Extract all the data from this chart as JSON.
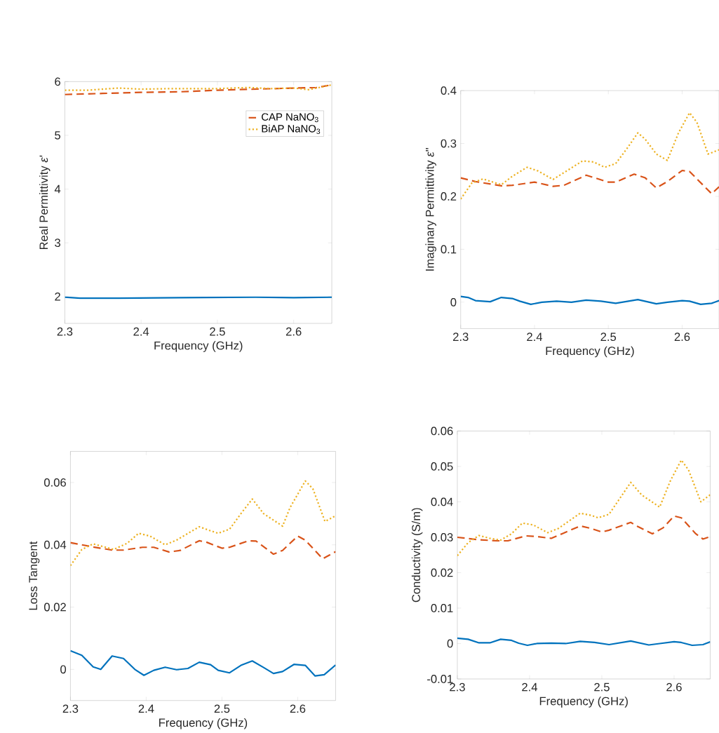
{
  "chart_data": [
    {
      "type": "line",
      "xlabel": "Frequency (GHz)",
      "ylabel": "Real Permittivity *ε*'",
      "xlim": [
        2.3,
        2.65
      ],
      "ylim": [
        1.5,
        6
      ],
      "xticks": [
        2.3,
        2.4,
        2.5,
        2.6
      ],
      "yticks": [
        2,
        3,
        4,
        5,
        6
      ],
      "legend": "top right",
      "series": [
        {
          "color": "#0072bd",
          "line_style": "solid",
          "x": [
            2.3,
            2.32,
            2.37,
            2.45,
            2.55,
            2.6,
            2.65
          ],
          "values": [
            1.99,
            1.97,
            1.97,
            1.98,
            1.99,
            1.98,
            1.99
          ]
        },
        {
          "name": "CAP NaNO$_{3}$",
          "color": "#d95319",
          "line_style": "dashed",
          "x": [
            2.3,
            2.35,
            2.4,
            2.45,
            2.5,
            2.55,
            2.6,
            2.63,
            2.65
          ],
          "values": [
            5.76,
            5.78,
            5.8,
            5.81,
            5.84,
            5.86,
            5.88,
            5.89,
            5.94
          ]
        },
        {
          "name": "BiAP NaNO$_{3}$",
          "color": "#edb120",
          "line_style": "dotted",
          "x": [
            2.3,
            2.33,
            2.37,
            2.4,
            2.44,
            2.5,
            2.54,
            2.57,
            2.6,
            2.62,
            2.65
          ],
          "values": [
            5.84,
            5.84,
            5.88,
            5.86,
            5.87,
            5.87,
            5.89,
            5.87,
            5.88,
            5.85,
            5.94
          ]
        }
      ]
    },
    {
      "type": "line",
      "xlabel": "Frequency (GHz)",
      "ylabel": "Imaginary Permittivity *ε*\"",
      "xlim": [
        2.3,
        2.65
      ],
      "ylim": [
        -0.05,
        0.4
      ],
      "xticks": [
        2.3,
        2.4,
        2.5,
        2.6
      ],
      "yticks": [
        0,
        0.1,
        0.2,
        0.3,
        0.4
      ],
      "series": [
        {
          "color": "#0072bd",
          "line_style": "solid",
          "x": [
            2.3,
            2.31,
            2.32,
            2.34,
            2.355,
            2.37,
            2.38,
            2.395,
            2.41,
            2.43,
            2.45,
            2.47,
            2.49,
            2.51,
            2.54,
            2.565,
            2.58,
            2.6,
            2.61,
            2.625,
            2.64,
            2.65
          ],
          "values": [
            0.011,
            0.009,
            0.003,
            0.001,
            0.009,
            0.007,
            0.002,
            -0.004,
            0,
            0.002,
            0,
            0.004,
            0.002,
            -0.002,
            0.005,
            -0.003,
            0,
            0.003,
            0.002,
            -0.004,
            -0.002,
            0.003
          ]
        },
        {
          "color": "#d95319",
          "line_style": "dashed",
          "x": [
            2.3,
            2.32,
            2.355,
            2.37,
            2.4,
            2.425,
            2.44,
            2.47,
            2.5,
            2.51,
            2.535,
            2.55,
            2.565,
            2.58,
            2.6,
            2.61,
            2.64,
            2.65
          ],
          "values": [
            0.235,
            0.228,
            0.22,
            0.221,
            0.227,
            0.219,
            0.221,
            0.24,
            0.227,
            0.227,
            0.242,
            0.235,
            0.216,
            0.228,
            0.249,
            0.247,
            0.205,
            0.218
          ]
        },
        {
          "color": "#edb120",
          "line_style": "dotted",
          "x": [
            2.3,
            2.315,
            2.33,
            2.355,
            2.37,
            2.39,
            2.405,
            2.425,
            2.44,
            2.465,
            2.48,
            2.495,
            2.51,
            2.525,
            2.54,
            2.55,
            2.565,
            2.58,
            2.595,
            2.61,
            2.62,
            2.635,
            2.65
          ],
          "values": [
            0.195,
            0.225,
            0.233,
            0.222,
            0.238,
            0.255,
            0.248,
            0.232,
            0.245,
            0.267,
            0.265,
            0.255,
            0.262,
            0.29,
            0.32,
            0.308,
            0.28,
            0.268,
            0.32,
            0.358,
            0.34,
            0.28,
            0.288
          ]
        }
      ]
    },
    {
      "type": "line",
      "xlabel": "Frequency (GHz)",
      "ylabel": "Loss Tangent",
      "xlim": [
        2.3,
        2.65
      ],
      "ylim": [
        -0.01,
        0.07
      ],
      "xticks": [
        2.3,
        2.4,
        2.5,
        2.6
      ],
      "yticks": [
        0,
        0.02,
        0.04,
        0.06
      ],
      "series": [
        {
          "color": "#0072bd",
          "line_style": "solid",
          "x": [
            2.3,
            2.315,
            2.33,
            2.34,
            2.355,
            2.37,
            2.385,
            2.397,
            2.41,
            2.425,
            2.44,
            2.455,
            2.47,
            2.485,
            2.495,
            2.51,
            2.525,
            2.54,
            2.555,
            2.568,
            2.58,
            2.595,
            2.61,
            2.623,
            2.635,
            2.65
          ],
          "values": [
            0.006,
            0.0045,
            0.0008,
            0,
            0.0043,
            0.0035,
            0,
            -0.0019,
            -0.0003,
            0.0007,
            -0.0001,
            0.0003,
            0.0023,
            0.0015,
            -0.0003,
            -0.0011,
            0.0013,
            0.0027,
            0.0006,
            -0.0013,
            -0.0007,
            0.0016,
            0.0013,
            -0.0021,
            -0.0017,
            0.0014
          ]
        },
        {
          "color": "#d95319",
          "line_style": "dashed",
          "x": [
            2.3,
            2.33,
            2.355,
            2.37,
            2.395,
            2.41,
            2.43,
            2.445,
            2.47,
            2.48,
            2.5,
            2.51,
            2.535,
            2.545,
            2.568,
            2.58,
            2.6,
            2.61,
            2.633,
            2.65
          ],
          "values": [
            0.0407,
            0.0393,
            0.0383,
            0.0383,
            0.0392,
            0.0392,
            0.0377,
            0.0382,
            0.0413,
            0.0408,
            0.0389,
            0.0392,
            0.0413,
            0.0412,
            0.037,
            0.0382,
            0.0428,
            0.0415,
            0.0355,
            0.0378
          ]
        },
        {
          "color": "#edb120",
          "line_style": "dotted",
          "x": [
            2.3,
            2.315,
            2.33,
            2.345,
            2.357,
            2.375,
            2.39,
            2.405,
            2.425,
            2.44,
            2.47,
            2.485,
            2.495,
            2.51,
            2.525,
            2.54,
            2.555,
            2.58,
            2.59,
            2.61,
            2.62,
            2.636,
            2.65
          ],
          "values": [
            0.0333,
            0.0385,
            0.0403,
            0.0393,
            0.0385,
            0.0405,
            0.0437,
            0.0428,
            0.04,
            0.0415,
            0.0458,
            0.0445,
            0.0437,
            0.045,
            0.05,
            0.0547,
            0.05,
            0.046,
            0.052,
            0.0605,
            0.058,
            0.0475,
            0.0493
          ]
        }
      ]
    },
    {
      "type": "line",
      "xlabel": "Frequency (GHz)",
      "ylabel": "Conductivity (S/m)",
      "xlim": [
        2.3,
        2.65
      ],
      "ylim": [
        -0.01,
        0.06
      ],
      "xticks": [
        2.3,
        2.4,
        2.5,
        2.6
      ],
      "yticks": [
        -0.01,
        0,
        0.01,
        0.02,
        0.03,
        0.04,
        0.05,
        0.06
      ],
      "series": [
        {
          "color": "#0072bd",
          "line_style": "solid",
          "x": [
            2.3,
            2.315,
            2.33,
            2.345,
            2.36,
            2.375,
            2.385,
            2.397,
            2.41,
            2.43,
            2.45,
            2.47,
            2.49,
            2.51,
            2.54,
            2.565,
            2.58,
            2.6,
            2.61,
            2.625,
            2.64,
            2.65
          ],
          "values": [
            0.0015,
            0.0012,
            0.0002,
            0.0002,
            0.0012,
            0.0009,
            0.0001,
            -0.0005,
            0,
            0.0001,
            0,
            0.0006,
            0.0003,
            -0.0003,
            0.0007,
            -0.0004,
            0,
            0.0005,
            0.0003,
            -0.0005,
            -0.0003,
            0.0005
          ]
        },
        {
          "color": "#d95319",
          "line_style": "dashed",
          "x": [
            2.3,
            2.33,
            2.355,
            2.37,
            2.395,
            2.41,
            2.43,
            2.445,
            2.47,
            2.485,
            2.5,
            2.51,
            2.54,
            2.55,
            2.57,
            2.585,
            2.6,
            2.61,
            2.63,
            2.64,
            2.65
          ],
          "values": [
            0.03,
            0.0293,
            0.029,
            0.029,
            0.0304,
            0.0302,
            0.0297,
            0.031,
            0.0332,
            0.0325,
            0.0315,
            0.032,
            0.0342,
            0.033,
            0.031,
            0.0327,
            0.036,
            0.0355,
            0.031,
            0.0295,
            0.0302
          ]
        },
        {
          "color": "#edb120",
          "line_style": "dotted",
          "x": [
            2.3,
            2.315,
            2.33,
            2.345,
            2.36,
            2.375,
            2.39,
            2.405,
            2.425,
            2.44,
            2.47,
            2.485,
            2.495,
            2.51,
            2.525,
            2.54,
            2.555,
            2.58,
            2.595,
            2.61,
            2.62,
            2.637,
            2.65
          ],
          "values": [
            0.0248,
            0.0285,
            0.0305,
            0.0297,
            0.0292,
            0.031,
            0.034,
            0.0335,
            0.0313,
            0.0325,
            0.0368,
            0.0362,
            0.0355,
            0.0365,
            0.041,
            0.0455,
            0.042,
            0.0385,
            0.046,
            0.0518,
            0.049,
            0.04,
            0.042
          ]
        }
      ]
    }
  ]
}
